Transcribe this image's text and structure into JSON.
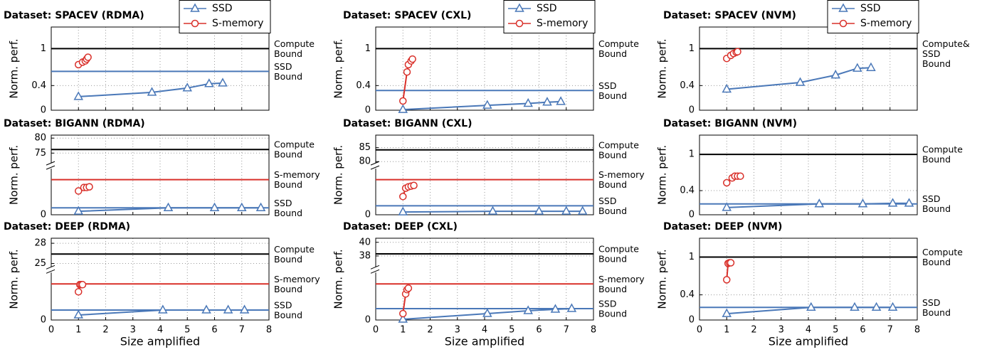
{
  "chart_data": [
    {
      "type": "line",
      "title": "Dataset: SPACEV (RDMA)",
      "y_label": "Norm. perf.",
      "xlim": [
        0,
        8
      ],
      "xticks": [
        0,
        1,
        2,
        3,
        4,
        5,
        6,
        7,
        8
      ],
      "ylim": [
        0,
        1.35
      ],
      "yticks": [
        0,
        0.4,
        1
      ],
      "grid": true,
      "legend": "upper right",
      "series": [
        {
          "name": "SSD",
          "color": "#4a78b8",
          "marker": "triangle",
          "x": [
            1,
            3.7,
            5,
            5.8,
            6.3
          ],
          "values": [
            0.22,
            0.29,
            0.36,
            0.43,
            0.44
          ]
        },
        {
          "name": "S-memory",
          "color": "#d9302a",
          "marker": "circle",
          "x": [
            1,
            1.15,
            1.25,
            1.3,
            1.35
          ],
          "values": [
            0.74,
            0.78,
            0.8,
            0.83,
            0.86
          ]
        }
      ],
      "hlines": [
        {
          "value": 1,
          "color": "#000000",
          "label": [
            "Compute",
            "Bound"
          ]
        },
        {
          "value": 0.63,
          "color": "#4a78b8",
          "label": [
            "SSD",
            "Bound"
          ]
        }
      ]
    },
    {
      "type": "line",
      "title": "Dataset: SPACEV (CXL)",
      "y_label": "Norm. perf.",
      "xlim": [
        0,
        8
      ],
      "xticks": [
        0,
        1,
        2,
        3,
        4,
        5,
        6,
        7,
        8
      ],
      "ylim": [
        0,
        1.35
      ],
      "yticks": [
        0,
        0.4,
        1
      ],
      "grid": true,
      "legend": "upper right",
      "series": [
        {
          "name": "SSD",
          "color": "#4a78b8",
          "marker": "triangle",
          "x": [
            1,
            4.1,
            5.6,
            6.3,
            6.8
          ],
          "values": [
            0.01,
            0.08,
            0.11,
            0.13,
            0.14
          ]
        },
        {
          "name": "S-memory",
          "color": "#d9302a",
          "marker": "circle",
          "x": [
            1,
            1.15,
            1.2,
            1.3,
            1.35
          ],
          "values": [
            0.15,
            0.62,
            0.74,
            0.8,
            0.83
          ]
        }
      ],
      "hlines": [
        {
          "value": 1,
          "color": "#000000",
          "label": [
            "Compute",
            "Bound"
          ]
        },
        {
          "value": 0.32,
          "color": "#4a78b8",
          "label": [
            "SSD",
            "Bound"
          ]
        }
      ]
    },
    {
      "type": "line",
      "title": "Dataset: SPACEV (NVM)",
      "y_label": "Norm. perf.",
      "xlim": [
        0,
        8
      ],
      "xticks": [
        0,
        1,
        2,
        3,
        4,
        5,
        6,
        7,
        8
      ],
      "ylim": [
        0,
        1.35
      ],
      "yticks": [
        0,
        0.4,
        1
      ],
      "grid": true,
      "legend": "upper right",
      "series": [
        {
          "name": "SSD",
          "color": "#4a78b8",
          "marker": "triangle",
          "x": [
            1,
            3.7,
            5,
            5.8,
            6.3
          ],
          "values": [
            0.34,
            0.45,
            0.57,
            0.68,
            0.69
          ]
        },
        {
          "name": "S-memory",
          "color": "#d9302a",
          "marker": "circle",
          "x": [
            1,
            1.15,
            1.25,
            1.35,
            1.4
          ],
          "values": [
            0.84,
            0.89,
            0.92,
            0.94,
            0.95
          ]
        }
      ],
      "hlines": [
        {
          "value": 1,
          "color": "#000000",
          "label": [
            "Compute&",
            "SSD",
            "Bound"
          ]
        }
      ]
    },
    {
      "type": "line",
      "title": "Dataset: BIGANN (RDMA)",
      "y_label": "Norm. perf.",
      "xlim": [
        0,
        8
      ],
      "xticks": [
        0,
        1,
        2,
        3,
        4,
        5,
        6,
        7,
        8
      ],
      "ylim": [
        0,
        20
      ],
      "ylim_upper": [
        71.7,
        81
      ],
      "yticks": [
        0,
        75,
        80
      ],
      "grid": true,
      "series": [
        {
          "color": "#4a78b8",
          "marker": "triangle",
          "x": [
            1,
            4.3,
            6,
            7,
            7.7
          ],
          "values": [
            1.5,
            3,
            3,
            3,
            3
          ]
        },
        {
          "color": "#d9302a",
          "marker": "circle",
          "x": [
            1,
            1.2,
            1.3,
            1.4
          ],
          "values": [
            10.3,
            11.8,
            11.8,
            12.1
          ]
        }
      ],
      "hlines": [
        {
          "value": 76.2,
          "color": "#000000",
          "label": [
            "Compute",
            "Bound"
          ]
        },
        {
          "value": 15.2,
          "color": "#d9302a",
          "label": [
            "S-memory",
            "Bound"
          ]
        },
        {
          "value": 3,
          "color": "#4a78b8",
          "label": [
            "SSD",
            "Bound"
          ]
        }
      ]
    },
    {
      "type": "line",
      "title": "Dataset: BIGANN (CXL)",
      "y_label": "Norm. perf.",
      "xlim": [
        0,
        8
      ],
      "xticks": [
        0,
        1,
        2,
        3,
        4,
        5,
        6,
        7,
        8
      ],
      "ylim": [
        0,
        20
      ],
      "ylim_upper": [
        79.5,
        89.5
      ],
      "yticks": [
        0,
        80,
        85
      ],
      "grid": true,
      "series": [
        {
          "color": "#4a78b8",
          "marker": "triangle",
          "x": [
            1,
            4.3,
            6,
            7,
            7.6
          ],
          "values": [
            1.2,
            1.5,
            1.5,
            1.5,
            1.5
          ]
        },
        {
          "color": "#d9302a",
          "marker": "circle",
          "x": [
            1,
            1.1,
            1.2,
            1.3,
            1.4
          ],
          "values": [
            7.9,
            11.5,
            12.1,
            12.4,
            12.7
          ]
        }
      ],
      "hlines": [
        {
          "value": 84.2,
          "color": "#000000",
          "label": [
            "Compute",
            "Bound"
          ]
        },
        {
          "value": 15.2,
          "color": "#d9302a",
          "label": [
            "S-memory",
            "Bound"
          ]
        },
        {
          "value": 3.9,
          "color": "#4a78b8",
          "label": [
            "SSD",
            "Bound"
          ]
        }
      ]
    },
    {
      "type": "line",
      "title": "Dataset: BIGANN (NVM)",
      "y_label": "Norm. perf.",
      "xlim": [
        0,
        8
      ],
      "xticks": [
        0,
        1,
        2,
        3,
        4,
        5,
        6,
        7,
        8
      ],
      "ylim": [
        0,
        1.32
      ],
      "yticks": [
        0,
        0.4,
        1
      ],
      "grid": true,
      "series": [
        {
          "color": "#4a78b8",
          "marker": "triangle",
          "x": [
            1,
            4.4,
            6,
            7.1,
            7.7
          ],
          "values": [
            0.12,
            0.18,
            0.18,
            0.19,
            0.19
          ]
        },
        {
          "color": "#d9302a",
          "marker": "circle",
          "x": [
            1,
            1.2,
            1.3,
            1.4,
            1.5
          ],
          "values": [
            0.53,
            0.61,
            0.64,
            0.64,
            0.64
          ]
        }
      ],
      "hlines": [
        {
          "value": 1,
          "color": "#000000",
          "label": [
            "Compute",
            "Bound"
          ]
        },
        {
          "value": 0.18,
          "color": "#4a78b8",
          "label": [
            "SSD",
            "Bound"
          ]
        }
      ]
    },
    {
      "type": "line",
      "title": "Dataset: DEEP (RDMA)",
      "y_label": "Norm. perf.",
      "x_label": "Size amplified",
      "xtick_labels": true,
      "xlim": [
        0,
        8
      ],
      "xticks": [
        0,
        1,
        2,
        3,
        4,
        5,
        6,
        7,
        8
      ],
      "ylim": [
        0,
        20
      ],
      "ylim_upper": [
        24.5,
        28.75
      ],
      "yticks": [
        0,
        25,
        28
      ],
      "grid": true,
      "series": [
        {
          "color": "#4a78b8",
          "marker": "triangle",
          "x": [
            1,
            4.1,
            5.7,
            6.5,
            7.1
          ],
          "values": [
            2.1,
            4.2,
            4.2,
            4.2,
            4.2
          ]
        },
        {
          "color": "#d9302a",
          "marker": "circle",
          "x": [
            1,
            1.05,
            1.1,
            1.15
          ],
          "values": [
            11.9,
            14.9,
            14.9,
            14.9
          ]
        }
      ],
      "hlines": [
        {
          "value": 26.4,
          "color": "#000000",
          "label": [
            "Compute",
            "Bound"
          ]
        },
        {
          "value": 15.2,
          "color": "#d9302a",
          "label": [
            "S-memory",
            "Bound"
          ]
        },
        {
          "value": 4.2,
          "color": "#4a78b8",
          "label": [
            "SSD",
            "Bound"
          ]
        }
      ]
    },
    {
      "type": "line",
      "title": "Dataset: DEEP (CXL)",
      "y_label": "Norm. perf.",
      "x_label": "Size amplified",
      "xtick_labels": true,
      "xlim": [
        0,
        8
      ],
      "xticks": [
        0,
        1,
        2,
        3,
        4,
        5,
        6,
        7,
        8
      ],
      "ylim": [
        0,
        20
      ],
      "ylim_upper": [
        36.4,
        40.6
      ],
      "yticks": [
        0,
        38,
        40
      ],
      "grid": true,
      "series": [
        {
          "color": "#4a78b8",
          "marker": "triangle",
          "x": [
            1,
            4.1,
            5.6,
            6.6,
            7.2
          ],
          "values": [
            0.3,
            2.7,
            3.9,
            4.5,
            4.8
          ]
        },
        {
          "color": "#d9302a",
          "marker": "circle",
          "x": [
            1,
            1.1,
            1.15,
            1.2
          ],
          "values": [
            2.7,
            11,
            12.8,
            13.4
          ]
        }
      ],
      "hlines": [
        {
          "value": 38.3,
          "color": "#000000",
          "label": [
            "Compute",
            "Bound"
          ]
        },
        {
          "value": 15.2,
          "color": "#d9302a",
          "label": [
            "S-memory",
            "Bound"
          ]
        },
        {
          "value": 4.8,
          "color": "#4a78b8",
          "label": [
            "SSD",
            "Bound"
          ]
        }
      ]
    },
    {
      "type": "line",
      "title": "Dataset: DEEP (NVM)",
      "y_label": "Norm. perf.",
      "x_label": "Size amplified",
      "xtick_labels": true,
      "xlim": [
        0,
        8
      ],
      "xticks": [
        0,
        1,
        2,
        3,
        4,
        5,
        6,
        7,
        8
      ],
      "ylim": [
        0,
        1.3
      ],
      "yticks": [
        0,
        0.4,
        1
      ],
      "grid": true,
      "series": [
        {
          "color": "#4a78b8",
          "marker": "triangle",
          "x": [
            1,
            4.1,
            5.7,
            6.5,
            7.1
          ],
          "values": [
            0.1,
            0.2,
            0.2,
            0.2,
            0.2
          ]
        },
        {
          "color": "#d9302a",
          "marker": "circle",
          "x": [
            1,
            1.05,
            1.1,
            1.15
          ],
          "values": [
            0.64,
            0.9,
            0.91,
            0.91
          ]
        }
      ],
      "hlines": [
        {
          "value": 1,
          "color": "#000000",
          "label": [
            "Compute",
            "Bound"
          ]
        },
        {
          "value": 0.2,
          "color": "#4a78b8",
          "label": [
            "SSD",
            "Bound"
          ]
        }
      ]
    }
  ]
}
